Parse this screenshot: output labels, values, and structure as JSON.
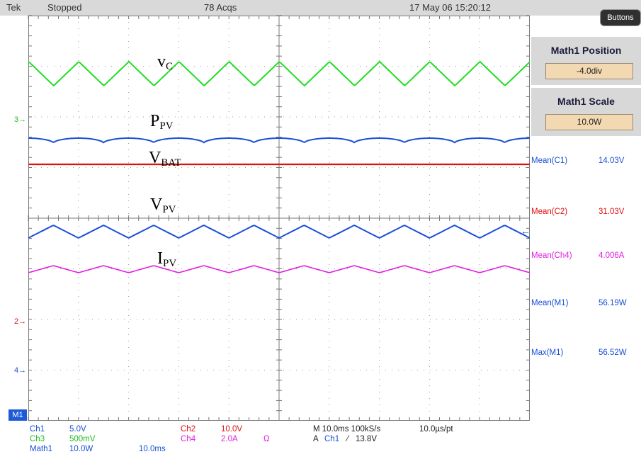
{
  "topbar": {
    "brand": "Tek",
    "state": "Stopped",
    "acqs": "78 Acqs",
    "datetime": "17 May 06 15:20:12"
  },
  "buttons_label": "Buttons",
  "menu": {
    "position_title": "Math1 Position",
    "position_value": "-4.0div",
    "scale_title": "Math1 Scale",
    "scale_value": "10.0W"
  },
  "measurements": [
    {
      "label": "Mean(C1)",
      "value": "14.03V",
      "color": "#1a4fd6"
    },
    {
      "label": "Mean(C2)",
      "value": "31.03V",
      "color": "#e01010"
    },
    {
      "label": "Mean(Ch4)",
      "value": "4.006A",
      "color": "#e020e0"
    },
    {
      "label": "Mean(M1)",
      "value": "56.19W",
      "color": "#1a4fd6"
    },
    {
      "label": "Max(M1)",
      "value": "56.52W",
      "color": "#1a4fd6"
    }
  ],
  "channel_markers": {
    "ch3": "3",
    "ch2": "2",
    "ch4": "4",
    "math": "M1"
  },
  "waveform_labels": {
    "vc": {
      "main": "v",
      "sub": "C"
    },
    "ppv": {
      "main": "P",
      "sub": "PV"
    },
    "vbat": {
      "main": "V",
      "sub": "BAT"
    },
    "vpv": {
      "main": "V",
      "sub": "PV"
    },
    "ipv": {
      "main": "I",
      "sub": "PV"
    }
  },
  "bottom": {
    "ch1": "Ch1",
    "ch1_scale": "5.0V",
    "ch3": "Ch3",
    "ch3_scale": "500mV",
    "math1": "Math1",
    "math1_scale": "10.0W",
    "math1_time": "10.0ms",
    "ch2": "Ch2",
    "ch2_scale": "10.0V",
    "ch4": "Ch4",
    "ch4_scale": "2.0A",
    "ch4_unit": "Ω",
    "timebase": "M 10.0ms 100kS/s",
    "pt": "10.0µs/pt",
    "trigger_prefix": "A",
    "trigger_src": "Ch1",
    "trigger_slope": "⁄",
    "trigger_level": "13.8V"
  },
  "colors": {
    "ch1": "#1a4fd6",
    "ch2": "#e01010",
    "ch3": "#22dd22",
    "ch4": "#e020e0",
    "math": "#1a4fd6"
  }
}
